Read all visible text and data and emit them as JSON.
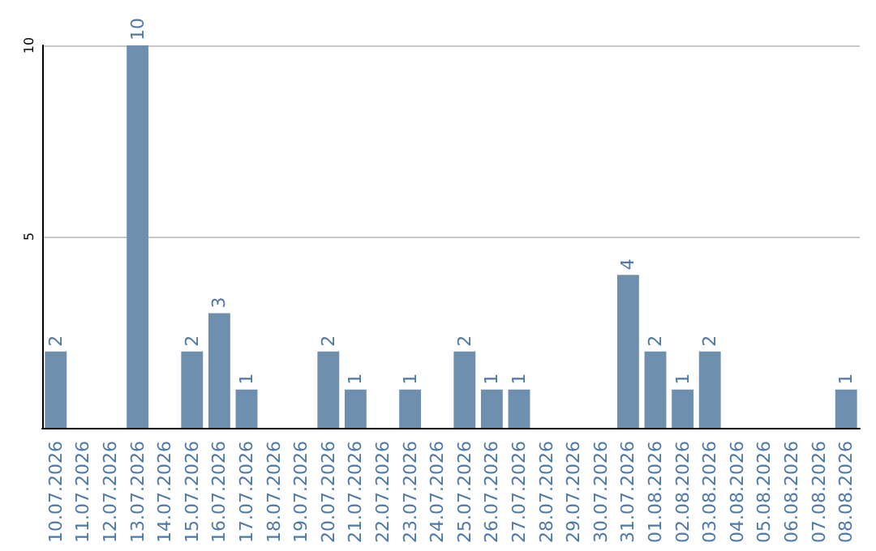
{
  "chart_data": {
    "type": "bar",
    "categories": [
      "10.07.2026",
      "11.07.2026",
      "12.07.2026",
      "13.07.2026",
      "14.07.2026",
      "15.07.2026",
      "16.07.2026",
      "17.07.2026",
      "18.07.2026",
      "19.07.2026",
      "20.07.2026",
      "21.07.2026",
      "22.07.2026",
      "23.07.2026",
      "24.07.2026",
      "25.07.2026",
      "26.07.2026",
      "27.07.2026",
      "28.07.2026",
      "29.07.2026",
      "30.07.2026",
      "31.07.2026",
      "01.08.2026",
      "02.08.2026",
      "03.08.2026",
      "04.08.2026",
      "05.08.2026",
      "06.08.2026",
      "07.08.2026",
      "08.08.2026"
    ],
    "values": [
      2,
      null,
      null,
      10,
      null,
      2,
      3,
      1,
      null,
      null,
      2,
      1,
      null,
      1,
      null,
      2,
      1,
      1,
      null,
      null,
      null,
      4,
      2,
      1,
      2,
      null,
      null,
      null,
      null,
      1
    ],
    "color": "#6f8fae",
    "ylim": [
      0,
      10
    ],
    "yticks": [
      5,
      10
    ],
    "grid": "y",
    "data_labels": true
  }
}
